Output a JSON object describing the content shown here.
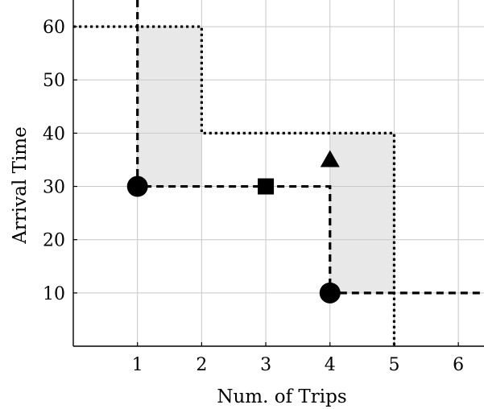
{
  "chart_data": {
    "type": "scatter",
    "xlabel": "Num. of Trips",
    "ylabel": "Arrival Time",
    "xlim": [
      0,
      6.4
    ],
    "ylim": [
      0,
      65
    ],
    "x_ticks": [
      "1",
      "2",
      "3",
      "4",
      "5",
      "6"
    ],
    "y_ticks": [
      "10",
      "20",
      "30",
      "40",
      "50",
      "60"
    ],
    "grid": true,
    "colors": {
      "shade": "#e8e8e8",
      "grid": "#c8c8c8",
      "ink": "#000000"
    },
    "shaded_regions": [
      {
        "x": [
          1,
          2
        ],
        "y": [
          30,
          60
        ]
      },
      {
        "x": [
          4,
          5
        ],
        "y": [
          10,
          40
        ]
      }
    ],
    "dotted_frontier": [
      [
        0,
        60
      ],
      [
        2,
        60
      ],
      [
        2,
        40
      ],
      [
        5,
        40
      ],
      [
        5,
        0
      ]
    ],
    "dashed_frontier": [
      [
        1,
        65
      ],
      [
        1,
        30
      ],
      [
        4,
        30
      ],
      [
        4,
        10
      ],
      [
        6.4,
        10
      ]
    ],
    "points": [
      {
        "x": 1,
        "y": 30,
        "marker": "circle"
      },
      {
        "x": 4,
        "y": 10,
        "marker": "circle"
      },
      {
        "x": 3,
        "y": 30,
        "marker": "square"
      },
      {
        "x": 4,
        "y": 35,
        "marker": "triangle"
      }
    ]
  }
}
